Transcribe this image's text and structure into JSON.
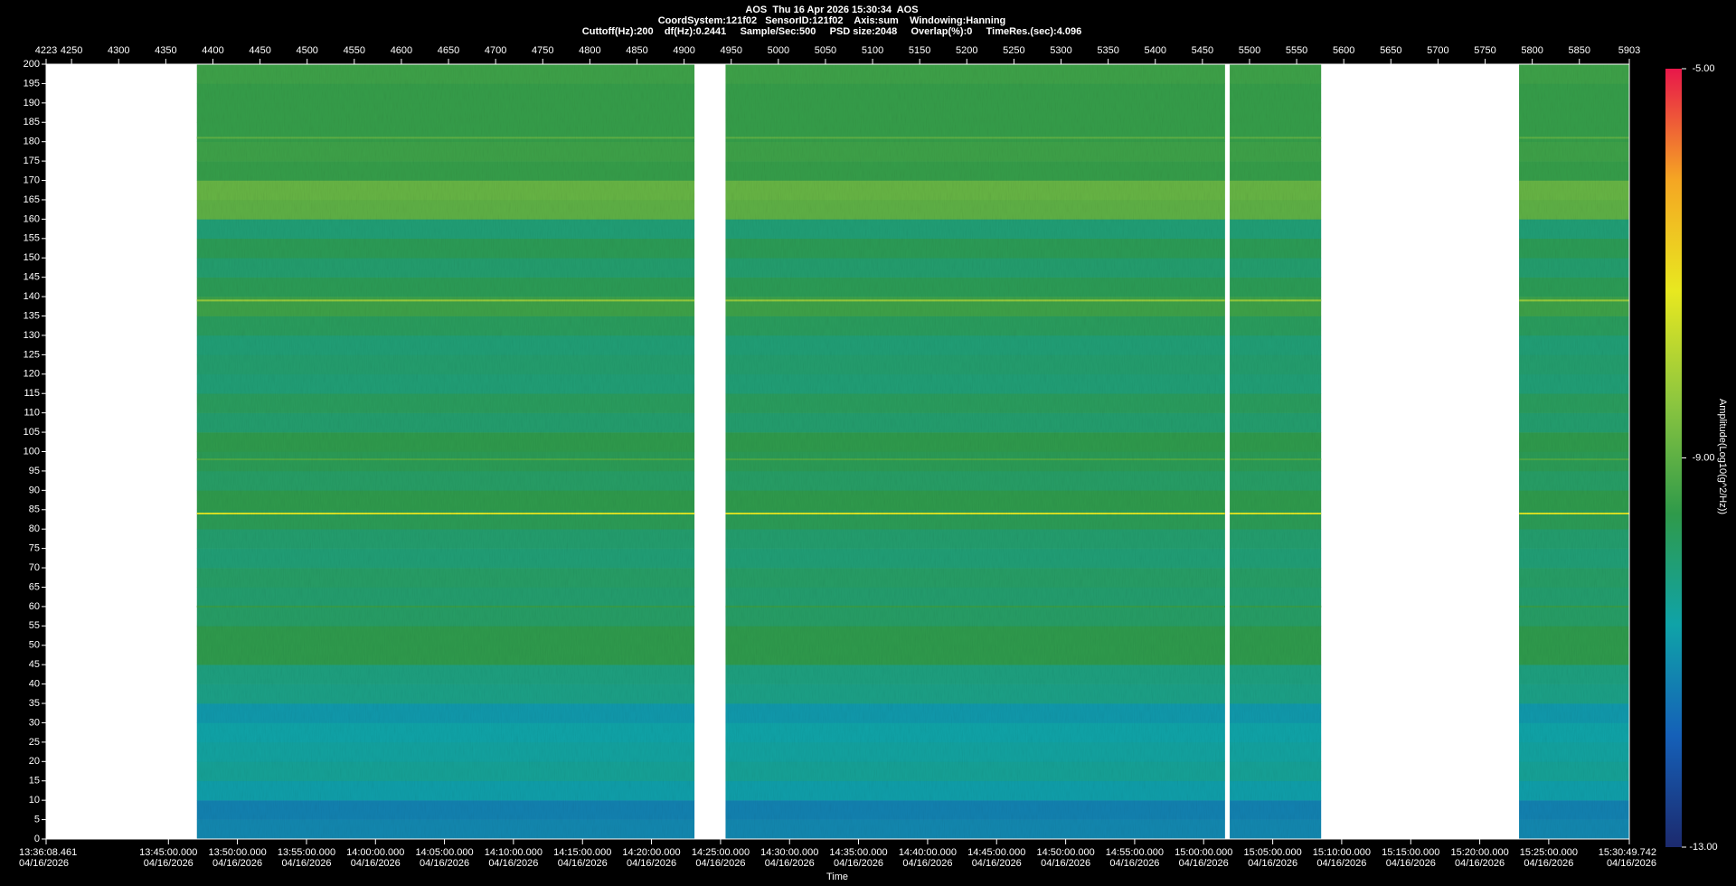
{
  "chart_data": {
    "type": "spectrogram",
    "title": "AOS  Thu 16 Apr 2026 15:30:34  AOS",
    "subtitle": [
      "CoordSystem:121f02   SensorID:121f02    Axis:sum    Windowing:Hanning",
      "Cuttoff(Hz):200    df(Hz):0.2441     Sample/Sec:500     PSD size:2048     Overlap(%):0     TimeRes.(sec):4.096"
    ],
    "x_label": "Time",
    "colorbar_label": "Amplitude(Log10(g^2/Hz))",
    "xlim": [
      4223,
      5903
    ],
    "xticks": [
      4223,
      4250,
      4300,
      4350,
      4400,
      4450,
      4500,
      4550,
      4600,
      4650,
      4700,
      4750,
      4800,
      4850,
      4900,
      4950,
      5000,
      5050,
      5100,
      5150,
      5200,
      5250,
      5300,
      5350,
      5400,
      5450,
      5500,
      5550,
      5600,
      5650,
      5700,
      5750,
      5800,
      5850,
      5903
    ],
    "x2ticks": [
      {
        "value": 4223,
        "label": "13:36:08.461",
        "date": "04/16/2026"
      },
      {
        "value": 4352.8,
        "label": "13:45:00.000",
        "date": "04/16/2026"
      },
      {
        "value": 4426.0,
        "label": "13:50:00.000",
        "date": "04/16/2026"
      },
      {
        "value": 4499.3,
        "label": "13:55:00.000",
        "date": "04/16/2026"
      },
      {
        "value": 4572.5,
        "label": "14:00:00.000",
        "date": "04/16/2026"
      },
      {
        "value": 4645.7,
        "label": "14:05:00.000",
        "date": "04/16/2026"
      },
      {
        "value": 4718.9,
        "label": "14:10:00.000",
        "date": "04/16/2026"
      },
      {
        "value": 4792.2,
        "label": "14:15:00.000",
        "date": "04/16/2026"
      },
      {
        "value": 4865.4,
        "label": "14:20:00.000",
        "date": "04/16/2026"
      },
      {
        "value": 4938.7,
        "label": "14:25:00.000",
        "date": "04/16/2026"
      },
      {
        "value": 5011.9,
        "label": "14:30:00.000",
        "date": "04/16/2026"
      },
      {
        "value": 5085.1,
        "label": "14:35:00.000",
        "date": "04/16/2026"
      },
      {
        "value": 5158.4,
        "label": "14:40:00.000",
        "date": "04/16/2026"
      },
      {
        "value": 5231.6,
        "label": "14:45:00.000",
        "date": "04/16/2026"
      },
      {
        "value": 5304.9,
        "label": "14:50:00.000",
        "date": "04/16/2026"
      },
      {
        "value": 5378.1,
        "label": "14:55:00.000",
        "date": "04/16/2026"
      },
      {
        "value": 5451.3,
        "label": "15:00:00.000",
        "date": "04/16/2026"
      },
      {
        "value": 5524.6,
        "label": "15:05:00.000",
        "date": "04/16/2026"
      },
      {
        "value": 5597.8,
        "label": "15:10:00.000",
        "date": "04/16/2026"
      },
      {
        "value": 5671.1,
        "label": "15:15:00.000",
        "date": "04/16/2026"
      },
      {
        "value": 5744.3,
        "label": "15:20:00.000",
        "date": "04/16/2026"
      },
      {
        "value": 5817.5,
        "label": "15:25:00.000",
        "date": "04/16/2026"
      },
      {
        "value": 5903,
        "label": "15:30:49.742",
        "date": "04/16/2026"
      }
    ],
    "ylim": [
      0,
      200
    ],
    "yticks": [
      0,
      5,
      10,
      15,
      20,
      25,
      30,
      35,
      40,
      45,
      50,
      55,
      60,
      65,
      70,
      75,
      80,
      85,
      90,
      95,
      100,
      105,
      110,
      115,
      120,
      125,
      130,
      135,
      140,
      145,
      150,
      155,
      160,
      165,
      170,
      175,
      180,
      185,
      190,
      195,
      200
    ],
    "segments": [
      [
        4383,
        4911
      ],
      [
        4944,
        5474
      ],
      [
        5479,
        5576
      ],
      [
        5786,
        5903
      ]
    ],
    "bins_hz": [
      0,
      5,
      10,
      15,
      20,
      25,
      30,
      35,
      40,
      45,
      50,
      55,
      60,
      65,
      70,
      75,
      80,
      85,
      90,
      95,
      100,
      105,
      110,
      115,
      120,
      125,
      130,
      135,
      140,
      145,
      150,
      155,
      160,
      165,
      170,
      175,
      180,
      185,
      190,
      195,
      200
    ],
    "levels": [
      -11.2,
      -11.3,
      -10.8,
      -10.5,
      -10.6,
      -10.7,
      -10.9,
      -10.3,
      -10.2,
      -9.6,
      -9.6,
      -9.9,
      -10.0,
      -9.9,
      -10.1,
      -10.0,
      -9.7,
      -9.6,
      -9.9,
      -9.7,
      -9.6,
      -10.0,
      -9.8,
      -10.1,
      -10.0,
      -10.1,
      -9.8,
      -9.4,
      -9.7,
      -10.0,
      -9.7,
      -10.1,
      -9.0,
      -8.9,
      -9.5,
      -9.4,
      -9.5,
      -9.5,
      -9.5,
      -9.4
    ],
    "line_hz": [
      84,
      139,
      181,
      98,
      60
    ],
    "line_levels": [
      -7.5,
      -8.3,
      -9.0,
      -9.2,
      -9.5
    ],
    "clim": [
      -13,
      -5
    ],
    "cticks": [
      {
        "value": -13,
        "label": "-13.00"
      },
      {
        "value": -9,
        "label": "-9.00"
      },
      {
        "value": -5,
        "label": "-5.00"
      }
    ],
    "colorscale": [
      "#1c2a6e",
      "#1560b8",
      "#0fa3a8",
      "#2f9a4a",
      "#8cc63f",
      "#e8e820",
      "#f5a623",
      "#e8174a"
    ]
  }
}
